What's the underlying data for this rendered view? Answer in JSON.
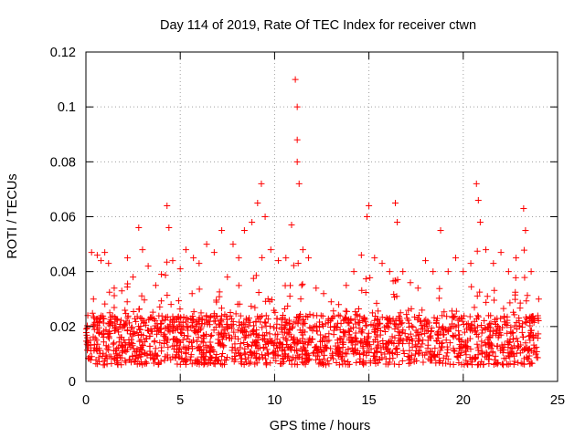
{
  "chart_data": {
    "type": "scatter",
    "title": "Day 114 of 2019, Rate Of TEC Index for receiver ctwn",
    "xlabel": "GPS time / hours",
    "ylabel": "ROTI / TECUs",
    "xlim": [
      0,
      25
    ],
    "ylim": [
      0,
      0.12
    ],
    "xticks": [
      0,
      5,
      10,
      15,
      20,
      25
    ],
    "xtick_labels": [
      "0",
      "5",
      "10",
      "15",
      "20",
      "25"
    ],
    "yticks": [
      0,
      0.02,
      0.04,
      0.06,
      0.08,
      0.1,
      0.12
    ],
    "ytick_labels": [
      "0",
      "0.02",
      "0.04",
      "0.06",
      "0.08",
      "0.1",
      "0.12"
    ],
    "grid": true,
    "marker": "+",
    "color": "#ff0000",
    "data_range_hours": [
      0,
      24
    ],
    "series": [
      {
        "name": "ROTI",
        "points": [
          [
            0.1,
            0.024
          ],
          [
            0.3,
            0.047
          ],
          [
            0.4,
            0.03
          ],
          [
            0.6,
            0.046
          ],
          [
            0.8,
            0.044
          ],
          [
            1.0,
            0.047
          ],
          [
            1.2,
            0.043
          ],
          [
            1.5,
            0.034
          ],
          [
            1.9,
            0.033
          ],
          [
            2.2,
            0.045
          ],
          [
            2.5,
            0.038
          ],
          [
            2.8,
            0.056
          ],
          [
            3.0,
            0.048
          ],
          [
            3.3,
            0.042
          ],
          [
            3.7,
            0.035
          ],
          [
            4.0,
            0.039
          ],
          [
            4.3,
            0.064
          ],
          [
            4.4,
            0.056
          ],
          [
            4.6,
            0.044
          ],
          [
            5.0,
            0.041
          ],
          [
            5.3,
            0.048
          ],
          [
            5.7,
            0.045
          ],
          [
            6.0,
            0.043
          ],
          [
            6.4,
            0.05
          ],
          [
            6.8,
            0.047
          ],
          [
            7.2,
            0.055
          ],
          [
            7.5,
            0.038
          ],
          [
            7.8,
            0.05
          ],
          [
            8.1,
            0.045
          ],
          [
            8.4,
            0.055
          ],
          [
            8.8,
            0.058
          ],
          [
            9.1,
            0.065
          ],
          [
            9.3,
            0.072
          ],
          [
            9.5,
            0.06
          ],
          [
            9.8,
            0.048
          ],
          [
            10.2,
            0.044
          ],
          [
            10.6,
            0.045
          ],
          [
            10.9,
            0.057
          ],
          [
            11.1,
            0.11
          ],
          [
            11.2,
            0.1
          ],
          [
            11.2,
            0.088
          ],
          [
            11.2,
            0.08
          ],
          [
            11.3,
            0.072
          ],
          [
            11.5,
            0.048
          ],
          [
            11.8,
            0.045
          ],
          [
            12.2,
            0.034
          ],
          [
            12.6,
            0.032
          ],
          [
            13.0,
            0.029
          ],
          [
            13.4,
            0.028
          ],
          [
            13.8,
            0.035
          ],
          [
            14.2,
            0.04
          ],
          [
            14.6,
            0.046
          ],
          [
            14.9,
            0.06
          ],
          [
            15.0,
            0.064
          ],
          [
            15.3,
            0.045
          ],
          [
            15.7,
            0.043
          ],
          [
            16.1,
            0.04
          ],
          [
            16.4,
            0.065
          ],
          [
            16.5,
            0.058
          ],
          [
            16.8,
            0.04
          ],
          [
            17.2,
            0.036
          ],
          [
            17.6,
            0.034
          ],
          [
            18.0,
            0.044
          ],
          [
            18.4,
            0.04
          ],
          [
            18.8,
            0.055
          ],
          [
            19.2,
            0.04
          ],
          [
            19.6,
            0.045
          ],
          [
            20.0,
            0.04
          ],
          [
            20.4,
            0.043
          ],
          [
            20.7,
            0.072
          ],
          [
            20.8,
            0.066
          ],
          [
            20.9,
            0.058
          ],
          [
            21.2,
            0.048
          ],
          [
            21.6,
            0.043
          ],
          [
            22.0,
            0.047
          ],
          [
            22.4,
            0.04
          ],
          [
            22.8,
            0.045
          ],
          [
            23.2,
            0.063
          ],
          [
            23.3,
            0.055
          ],
          [
            23.6,
            0.04
          ],
          [
            24.0,
            0.03
          ]
        ]
      }
    ]
  }
}
